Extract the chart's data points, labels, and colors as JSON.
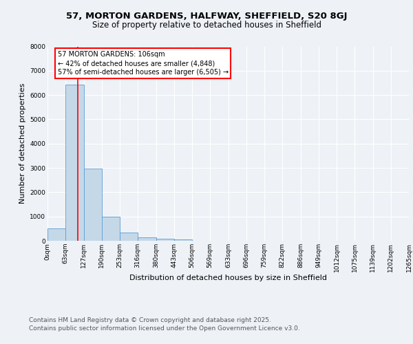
{
  "title_line1": "57, MORTON GARDENS, HALFWAY, SHEFFIELD, S20 8GJ",
  "title_line2": "Size of property relative to detached houses in Sheffield",
  "xlabel": "Distribution of detached houses by size in Sheffield",
  "ylabel": "Number of detached properties",
  "bar_edges": [
    0,
    63,
    127,
    190,
    253,
    316,
    380,
    443,
    506,
    569,
    633,
    696,
    759,
    822,
    886,
    949,
    1012,
    1075,
    1139,
    1202,
    1265
  ],
  "bar_heights": [
    500,
    6430,
    2970,
    990,
    350,
    150,
    90,
    50,
    0,
    0,
    0,
    0,
    0,
    0,
    0,
    0,
    0,
    0,
    0,
    0
  ],
  "bar_color": "#c5d8e8",
  "bar_edgecolor": "#5b9bd5",
  "vline_x": 106,
  "vline_color": "red",
  "annotation_text": "57 MORTON GARDENS: 106sqm\n← 42% of detached houses are smaller (4,848)\n57% of semi-detached houses are larger (6,505) →",
  "annotation_box_edgecolor": "red",
  "annotation_box_facecolor": "white",
  "ylim": [
    0,
    8000
  ],
  "yticks": [
    0,
    1000,
    2000,
    3000,
    4000,
    5000,
    6000,
    7000,
    8000
  ],
  "tick_labels": [
    "0sqm",
    "63sqm",
    "127sqm",
    "190sqm",
    "253sqm",
    "316sqm",
    "380sqm",
    "443sqm",
    "506sqm",
    "569sqm",
    "633sqm",
    "696sqm",
    "759sqm",
    "822sqm",
    "886sqm",
    "949sqm",
    "1012sqm",
    "1075sqm",
    "1139sqm",
    "1202sqm",
    "1265sqm"
  ],
  "footer_line1": "Contains HM Land Registry data © Crown copyright and database right 2025.",
  "footer_line2": "Contains public sector information licensed under the Open Government Licence v3.0.",
  "bg_color": "#eef2f7",
  "grid_color": "#ffffff",
  "title_fontsize": 9.5,
  "subtitle_fontsize": 8.5,
  "axis_label_fontsize": 8,
  "tick_fontsize": 6.5,
  "annotation_fontsize": 7,
  "footer_fontsize": 6.5
}
